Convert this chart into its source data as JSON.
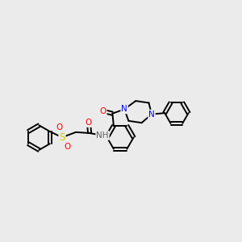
{
  "background_color": "#ebebeb",
  "fig_width": 3.0,
  "fig_height": 3.0,
  "dpi": 100,
  "atom_colors": {
    "C": "#000000",
    "N": "#0000FF",
    "O": "#FF0000",
    "S": "#CCCC00",
    "H": "#606060"
  },
  "bond_color": "#000000",
  "bond_width": 1.4
}
